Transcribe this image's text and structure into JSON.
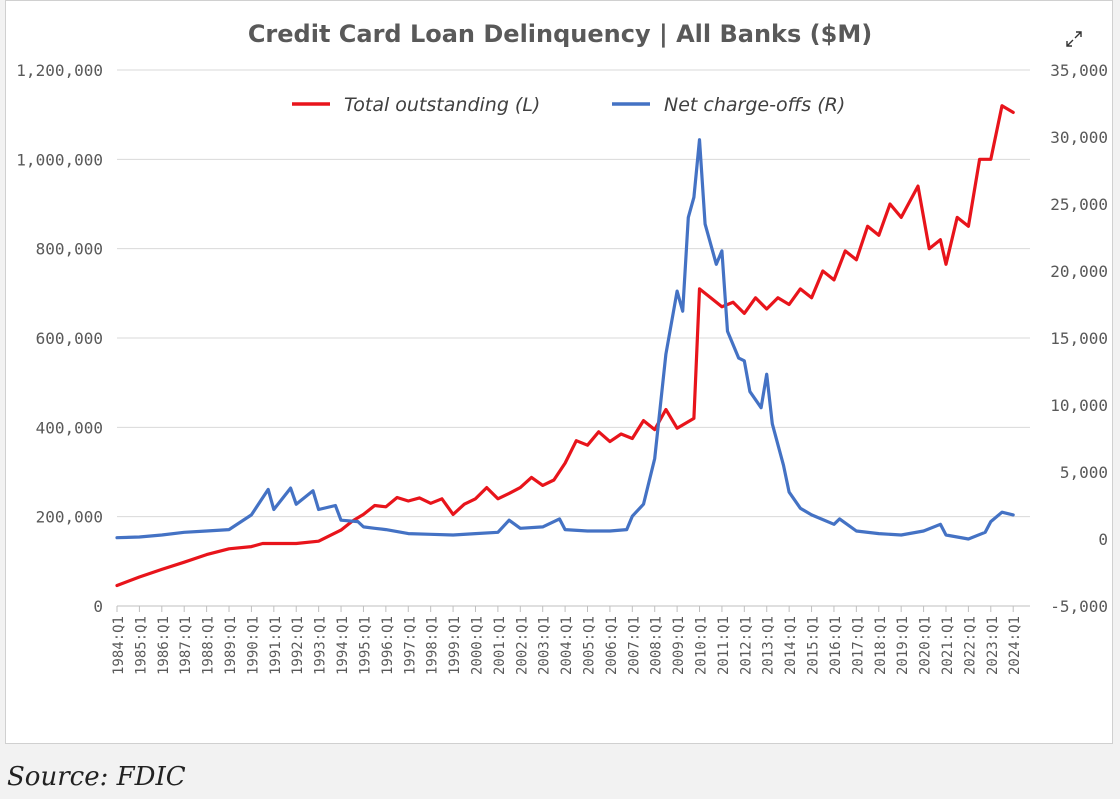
{
  "source": "Source: FDIC",
  "icons": {
    "expand": "expand-icon"
  },
  "colors": {
    "series_left": "#e8141b",
    "series_right": "#4472c4",
    "grid": "#d9d9d9",
    "text": "#595959"
  },
  "chart_data": {
    "type": "line",
    "title": "Credit Card Loan Delinquency | All Banks ($M)",
    "legend_position": "top-center",
    "grid": true,
    "x_tick_labels": [
      "1984:Q1",
      "1985:Q1",
      "1986:Q1",
      "1987:Q1",
      "1988:Q1",
      "1989:Q1",
      "1990:Q1",
      "1991:Q1",
      "1992:Q1",
      "1993:Q1",
      "1994:Q1",
      "1995:Q1",
      "1996:Q1",
      "1997:Q1",
      "1998:Q1",
      "1999:Q1",
      "2000:Q1",
      "2001:Q1",
      "2002:Q1",
      "2003:Q1",
      "2004:Q1",
      "2005:Q1",
      "2006:Q1",
      "2007:Q1",
      "2008:Q1",
      "2009:Q1",
      "2010:Q1",
      "2011:Q1",
      "2012:Q1",
      "2013:Q1",
      "2014:Q1",
      "2015:Q1",
      "2016:Q1",
      "2017:Q1",
      "2018:Q1",
      "2019:Q1",
      "2020:Q1",
      "2021:Q1",
      "2022:Q1",
      "2023:Q1",
      "2024:Q1"
    ],
    "y_left": {
      "min": 0,
      "max": 1200000,
      "ticks": [
        "0",
        "200,000",
        "400,000",
        "600,000",
        "800,000",
        "1,000,000",
        "1,200,000"
      ]
    },
    "y_right": {
      "min": -5000,
      "max": 35000,
      "ticks": [
        "-5,000",
        "0",
        "5,000",
        "10,000",
        "15,000",
        "20,000",
        "25,000",
        "30,000",
        "35,000"
      ]
    },
    "series": [
      {
        "name": "Total outstanding (L)",
        "axis": "left",
        "points": [
          [
            "1984:Q1",
            46000
          ],
          [
            "1985:Q1",
            65000
          ],
          [
            "1986:Q1",
            82000
          ],
          [
            "1987:Q1",
            98000
          ],
          [
            "1988:Q1",
            115000
          ],
          [
            "1989:Q1",
            128000
          ],
          [
            "1990:Q1",
            133000
          ],
          [
            "1990:Q3",
            140000
          ],
          [
            "1991:Q1",
            140000
          ],
          [
            "1992:Q1",
            140000
          ],
          [
            "1993:Q1",
            145000
          ],
          [
            "1994:Q1",
            170000
          ],
          [
            "1994:Q3",
            190000
          ],
          [
            "1995:Q1",
            205000
          ],
          [
            "1995:Q3",
            225000
          ],
          [
            "1996:Q1",
            222000
          ],
          [
            "1996:Q3",
            243000
          ],
          [
            "1997:Q1",
            235000
          ],
          [
            "1997:Q3",
            242000
          ],
          [
            "1998:Q1",
            230000
          ],
          [
            "1998:Q3",
            240000
          ],
          [
            "1999:Q1",
            205000
          ],
          [
            "1999:Q3",
            228000
          ],
          [
            "2000:Q1",
            240000
          ],
          [
            "2000:Q3",
            265000
          ],
          [
            "2001:Q1",
            240000
          ],
          [
            "2001:Q3",
            252000
          ],
          [
            "2002:Q1",
            265000
          ],
          [
            "2002:Q3",
            288000
          ],
          [
            "2003:Q1",
            270000
          ],
          [
            "2003:Q3",
            282000
          ],
          [
            "2004:Q1",
            320000
          ],
          [
            "2004:Q3",
            370000
          ],
          [
            "2005:Q1",
            360000
          ],
          [
            "2005:Q3",
            390000
          ],
          [
            "2006:Q1",
            368000
          ],
          [
            "2006:Q3",
            385000
          ],
          [
            "2007:Q1",
            375000
          ],
          [
            "2007:Q3",
            415000
          ],
          [
            "2008:Q1",
            395000
          ],
          [
            "2008:Q3",
            440000
          ],
          [
            "2009:Q1",
            398000
          ],
          [
            "2009:Q4",
            420000
          ],
          [
            "2010:Q1",
            710000
          ],
          [
            "2010:Q3",
            690000
          ],
          [
            "2011:Q1",
            670000
          ],
          [
            "2011:Q3",
            680000
          ],
          [
            "2012:Q1",
            655000
          ],
          [
            "2012:Q3",
            690000
          ],
          [
            "2013:Q1",
            665000
          ],
          [
            "2013:Q3",
            690000
          ],
          [
            "2014:Q1",
            675000
          ],
          [
            "2014:Q3",
            710000
          ],
          [
            "2015:Q1",
            690000
          ],
          [
            "2015:Q3",
            750000
          ],
          [
            "2016:Q1",
            730000
          ],
          [
            "2016:Q3",
            795000
          ],
          [
            "2017:Q1",
            775000
          ],
          [
            "2017:Q3",
            850000
          ],
          [
            "2018:Q1",
            830000
          ],
          [
            "2018:Q3",
            900000
          ],
          [
            "2019:Q1",
            870000
          ],
          [
            "2019:Q4",
            940000
          ],
          [
            "2020:Q2",
            800000
          ],
          [
            "2020:Q4",
            820000
          ],
          [
            "2021:Q1",
            765000
          ],
          [
            "2021:Q3",
            870000
          ],
          [
            "2022:Q1",
            850000
          ],
          [
            "2022:Q3",
            1000000
          ],
          [
            "2023:Q1",
            1000000
          ],
          [
            "2023:Q3",
            1120000
          ],
          [
            "2024:Q1",
            1105000
          ]
        ]
      },
      {
        "name": "Net charge-offs (R)",
        "axis": "right",
        "points": [
          [
            "1984:Q1",
            100
          ],
          [
            "1985:Q1",
            150
          ],
          [
            "1986:Q1",
            300
          ],
          [
            "1987:Q1",
            500
          ],
          [
            "1988:Q1",
            600
          ],
          [
            "1989:Q1",
            700
          ],
          [
            "1990:Q1",
            1800
          ],
          [
            "1990:Q4",
            3700
          ],
          [
            "1991:Q1",
            2200
          ],
          [
            "1991:Q4",
            3800
          ],
          [
            "1992:Q1",
            2600
          ],
          [
            "1992:Q4",
            3600
          ],
          [
            "1993:Q1",
            2200
          ],
          [
            "1993:Q4",
            2500
          ],
          [
            "1994:Q1",
            1400
          ],
          [
            "1994:Q4",
            1300
          ],
          [
            "1995:Q1",
            900
          ],
          [
            "1995:Q3",
            800
          ],
          [
            "1996:Q1",
            700
          ],
          [
            "1997:Q1",
            400
          ],
          [
            "1998:Q1",
            350
          ],
          [
            "1999:Q1",
            300
          ],
          [
            "2000:Q1",
            400
          ],
          [
            "2001:Q1",
            500
          ],
          [
            "2001:Q3",
            1400
          ],
          [
            "2002:Q1",
            800
          ],
          [
            "2003:Q1",
            900
          ],
          [
            "2003:Q4",
            1500
          ],
          [
            "2004:Q1",
            700
          ],
          [
            "2005:Q1",
            600
          ],
          [
            "2006:Q1",
            600
          ],
          [
            "2006:Q4",
            700
          ],
          [
            "2007:Q1",
            1700
          ],
          [
            "2007:Q3",
            2600
          ],
          [
            "2008:Q1",
            6000
          ],
          [
            "2008:Q3",
            13800
          ],
          [
            "2009:Q1",
            18500
          ],
          [
            "2009:Q2",
            17000
          ],
          [
            "2009:Q3",
            24000
          ],
          [
            "2009:Q4",
            25500
          ],
          [
            "2010:Q1",
            29800
          ],
          [
            "2010:Q2",
            23500
          ],
          [
            "2010:Q4",
            20500
          ],
          [
            "2011:Q1",
            21500
          ],
          [
            "2011:Q2",
            15500
          ],
          [
            "2011:Q4",
            13500
          ],
          [
            "2012:Q1",
            13300
          ],
          [
            "2012:Q2",
            11000
          ],
          [
            "2012:Q4",
            9800
          ],
          [
            "2013:Q1",
            12300
          ],
          [
            "2013:Q2",
            8600
          ],
          [
            "2013:Q4",
            5500
          ],
          [
            "2014:Q1",
            3500
          ],
          [
            "2014:Q3",
            2300
          ],
          [
            "2015:Q1",
            1800
          ],
          [
            "2016:Q1",
            1100
          ],
          [
            "2016:Q2",
            1500
          ],
          [
            "2017:Q1",
            600
          ],
          [
            "2018:Q1",
            400
          ],
          [
            "2019:Q1",
            300
          ],
          [
            "2020:Q1",
            600
          ],
          [
            "2020:Q4",
            1100
          ],
          [
            "2021:Q1",
            300
          ],
          [
            "2022:Q1",
            0
          ],
          [
            "2022:Q4",
            500
          ],
          [
            "2023:Q1",
            1300
          ],
          [
            "2023:Q3",
            2000
          ],
          [
            "2024:Q1",
            1800
          ]
        ]
      }
    ]
  }
}
